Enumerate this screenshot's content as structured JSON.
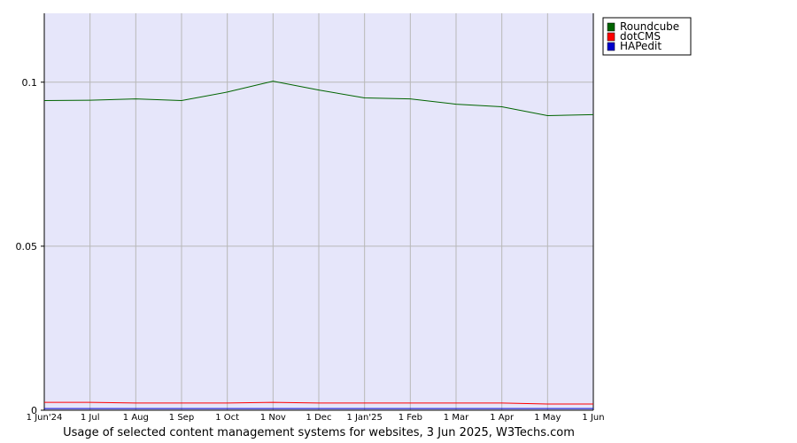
{
  "chart_data": {
    "type": "line",
    "xlabel": "Usage of selected content management systems for websites, 3 Jun 2025, W3Techs.com",
    "categories": [
      "1 Jun'24",
      "1 Jul",
      "1 Aug",
      "1 Sep",
      "1 Oct",
      "1 Nov",
      "1 Dec",
      "1 Jan'25",
      "1 Feb",
      "1 Mar",
      "1 Apr",
      "1 May",
      "1 Jun"
    ],
    "series": [
      {
        "name": "Roundcube",
        "color": "#006400",
        "values": [
          0.0944,
          0.0945,
          0.0949,
          0.0944,
          0.097,
          0.1003,
          0.0976,
          0.0952,
          0.0949,
          0.0933,
          0.0925,
          0.0898,
          0.0901
        ]
      },
      {
        "name": "dotCMS",
        "color": "#ff0000",
        "values": [
          0.0024,
          0.0024,
          0.0022,
          0.0022,
          0.0022,
          0.0024,
          0.0022,
          0.0022,
          0.0022,
          0.0022,
          0.0022,
          0.0019,
          0.0019
        ]
      },
      {
        "name": "HAPedit",
        "color": "#0000cd",
        "values": [
          0.0005,
          0.0005,
          0.0005,
          0.0005,
          0.0005,
          0.0005,
          0.0005,
          0.0005,
          0.0005,
          0.0005,
          0.0005,
          0.0005,
          0.0005
        ]
      }
    ],
    "ylim": [
      0,
      0.121
    ],
    "yticks": [
      0,
      0.05,
      0.1
    ],
    "grid": true,
    "legend": "top-right"
  }
}
